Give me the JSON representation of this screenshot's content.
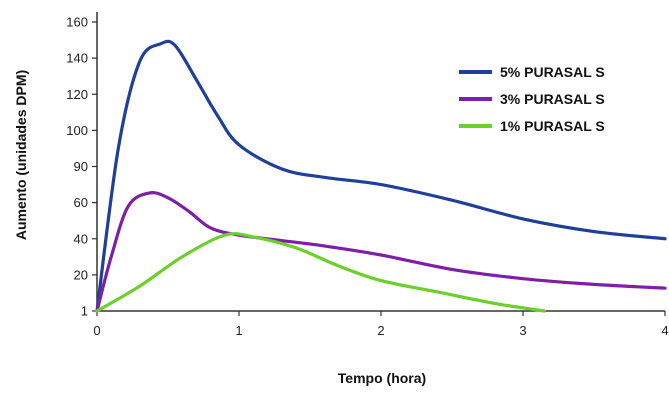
{
  "chart_data": {
    "type": "line",
    "xlabel": "Tempo (hora)",
    "ylabel": "Aumento (unidades DPM)",
    "xlim": [
      0,
      4
    ],
    "x_ticks": [
      "0",
      "1",
      "2",
      "3",
      "4"
    ],
    "y_ticks": [
      "1",
      "20",
      "40",
      "60",
      "90",
      "100",
      "120",
      "140",
      "160"
    ],
    "grid": false,
    "legend_position": "top-right",
    "series": [
      {
        "name": "5% PURASAL S",
        "color": "#1f3f99",
        "points": [
          [
            0,
            1
          ],
          [
            0.15,
            95
          ],
          [
            0.3,
            138
          ],
          [
            0.45,
            148
          ],
          [
            0.55,
            147
          ],
          [
            0.7,
            128
          ],
          [
            0.85,
            108
          ],
          [
            1.0,
            96
          ],
          [
            1.3,
            88
          ],
          [
            1.6,
            81
          ],
          [
            2.0,
            75
          ],
          [
            2.5,
            62
          ],
          [
            3.0,
            51
          ],
          [
            3.5,
            44
          ],
          [
            4.0,
            40
          ]
        ]
      },
      {
        "name": "3% PURASAL S",
        "color": "#7e1fa8",
        "points": [
          [
            0,
            1
          ],
          [
            0.1,
            30
          ],
          [
            0.22,
            58
          ],
          [
            0.37,
            68
          ],
          [
            0.5,
            64
          ],
          [
            0.65,
            55
          ],
          [
            0.8,
            46
          ],
          [
            1.0,
            42
          ],
          [
            1.3,
            39
          ],
          [
            1.6,
            36
          ],
          [
            2.0,
            31
          ],
          [
            2.5,
            23
          ],
          [
            3.0,
            18
          ],
          [
            3.5,
            15
          ],
          [
            4.0,
            13
          ]
        ]
      },
      {
        "name": "1% PURASAL S",
        "color": "#6ccf2c",
        "points": [
          [
            0,
            1
          ],
          [
            0.3,
            14
          ],
          [
            0.6,
            30
          ],
          [
            0.9,
            42
          ],
          [
            1.1,
            41
          ],
          [
            1.4,
            35
          ],
          [
            1.7,
            25
          ],
          [
            2.0,
            17
          ],
          [
            2.4,
            11
          ],
          [
            2.8,
            5
          ],
          [
            3.15,
            1
          ]
        ]
      }
    ]
  }
}
